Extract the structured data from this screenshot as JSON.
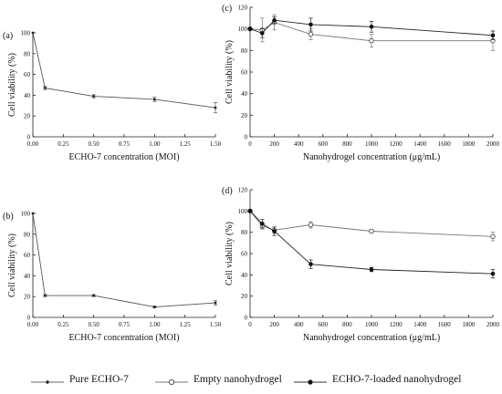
{
  "chart_data": [
    {
      "panel": "(a)",
      "type": "line",
      "xlabel": "ECHO-7 concentration (MOI)",
      "ylabel": "Cell viability (%)",
      "xlim": [
        0,
        1.5
      ],
      "ylim": [
        0,
        100
      ],
      "xticks": [
        "0.00",
        "0.25",
        "0.50",
        "0.75",
        "1.00",
        "1.25",
        "1.50"
      ],
      "yticks": [
        "0",
        "20",
        "40",
        "60",
        "80",
        "100"
      ],
      "series": [
        {
          "x": [
            0,
            0.1,
            0.5,
            1.0,
            1.5
          ],
          "values": [
            100,
            47,
            39,
            36,
            28
          ],
          "err": [
            0,
            1.5,
            1.5,
            2,
            5
          ],
          "marker": "dot-small",
          "color": "#555555"
        }
      ]
    },
    {
      "panel": "(b)",
      "type": "line",
      "xlabel": "ECHO-7 concentration (MOI)",
      "ylabel": "Cell viability (%)",
      "xlim": [
        0,
        1.5
      ],
      "ylim": [
        0,
        100
      ],
      "xticks": [
        "0.00",
        "0.25",
        "0.50",
        "0.75",
        "1.00",
        "1.25",
        "1.50"
      ],
      "yticks": [
        "0",
        "20",
        "40",
        "60",
        "80",
        "100"
      ],
      "series": [
        {
          "x": [
            0,
            0.1,
            0.5,
            1.0,
            1.5
          ],
          "values": [
            100,
            21,
            21,
            10,
            14
          ],
          "err": [
            0,
            1,
            1,
            1,
            2
          ],
          "marker": "dot-small",
          "color": "#555555"
        }
      ]
    },
    {
      "panel": "(c)",
      "type": "line",
      "xlabel": "Nanohydrogel concentration (μg/mL)",
      "ylabel": "Cell viability (%)",
      "xlim": [
        0,
        2000
      ],
      "ylim": [
        0,
        120
      ],
      "xticks": [
        "0",
        "200",
        "400",
        "600",
        "800",
        "1000",
        "1200",
        "1400",
        "1600",
        "1800",
        "2000"
      ],
      "yticks": [
        "0",
        "20",
        "40",
        "60",
        "80",
        "100",
        "120"
      ],
      "series": [
        {
          "x": [
            0,
            100,
            200,
            500,
            1000,
            2000
          ],
          "values": [
            100,
            99,
            106,
            95,
            89,
            89
          ],
          "err": [
            0,
            11,
            7,
            5,
            6,
            9
          ],
          "marker": "open-circle",
          "color": "#777777"
        },
        {
          "x": [
            0,
            100,
            200,
            500,
            1000,
            2000
          ],
          "values": [
            100,
            96,
            108,
            104,
            102,
            94
          ],
          "err": [
            0,
            4,
            3,
            6,
            5,
            4
          ],
          "marker": "filled-circle",
          "color": "#222222"
        }
      ]
    },
    {
      "panel": "(d)",
      "type": "line",
      "xlabel": "Nanohydrogel concentration (μg/mL)",
      "ylabel": "Cell viability (%)",
      "xlim": [
        0,
        2000
      ],
      "ylim": [
        0,
        120
      ],
      "xticks": [
        "0",
        "200",
        "400",
        "600",
        "800",
        "1000",
        "1200",
        "1400",
        "1600",
        "1800",
        "2000"
      ],
      "yticks": [
        "0",
        "20",
        "40",
        "60",
        "80",
        "100",
        "120"
      ],
      "series": [
        {
          "x": [
            0,
            100,
            200,
            500,
            1000,
            2000
          ],
          "values": [
            100,
            86,
            82,
            87,
            81,
            76
          ],
          "err": [
            0,
            3,
            3,
            3,
            1.5,
            4
          ],
          "marker": "open-circle",
          "color": "#777777"
        },
        {
          "x": [
            0,
            100,
            200,
            500,
            1000,
            2000
          ],
          "values": [
            100,
            88,
            81,
            50,
            45,
            41
          ],
          "err": [
            0,
            4,
            4,
            4,
            2,
            4
          ],
          "marker": "filled-circle",
          "color": "#222222"
        }
      ]
    }
  ],
  "legend": [
    {
      "label": "Pure ECHO-7",
      "marker": "dot-small"
    },
    {
      "label": "Empty nanohydrogel",
      "marker": "open-circle"
    },
    {
      "label": "ECHO-7-loaded nanohydrogel",
      "marker": "filled-circle"
    }
  ]
}
